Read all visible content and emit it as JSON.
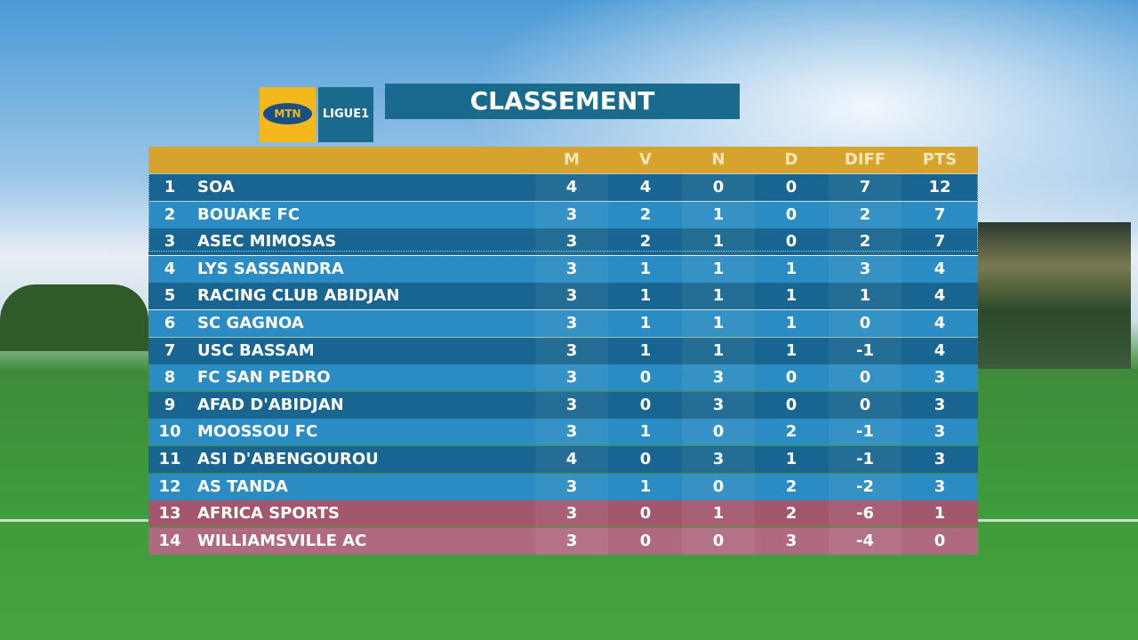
{
  "logo": {
    "brand": "MTN",
    "league": "LIGUE1"
  },
  "title": "CLASSEMENT",
  "table": {
    "columns": [
      "M",
      "V",
      "N",
      "D",
      "DIFF",
      "PTS"
    ],
    "rows": [
      [
        1,
        "SOA",
        4,
        4,
        0,
        0,
        7,
        12
      ],
      [
        2,
        "BOUAKE FC",
        3,
        2,
        1,
        0,
        2,
        7
      ],
      [
        3,
        "ASEC MIMOSAS",
        3,
        2,
        1,
        0,
        2,
        7
      ],
      [
        4,
        "LYS SASSANDRA",
        3,
        1,
        1,
        1,
        3,
        4
      ],
      [
        5,
        "RACING CLUB ABIDJAN",
        3,
        1,
        1,
        1,
        1,
        4
      ],
      [
        6,
        "SC GAGNOA",
        3,
        1,
        1,
        1,
        0,
        4
      ],
      [
        7,
        "USC BASSAM",
        3,
        1,
        1,
        1,
        -1,
        4
      ],
      [
        8,
        "FC SAN PEDRO",
        3,
        0,
        3,
        0,
        0,
        3
      ],
      [
        9,
        "AFAD D'ABIDJAN",
        3,
        0,
        3,
        0,
        0,
        3
      ],
      [
        10,
        "MOOSSOU FC",
        3,
        1,
        0,
        2,
        -1,
        3
      ],
      [
        11,
        "ASI D'ABENGOUROU",
        4,
        0,
        3,
        1,
        -1,
        3
      ],
      [
        12,
        "AS TANDA",
        3,
        1,
        0,
        2,
        -2,
        3
      ],
      [
        13,
        "AFRICA SPORTS",
        3,
        0,
        1,
        2,
        -6,
        1
      ],
      [
        14,
        "WILLIAMSVILLE AC",
        3,
        0,
        0,
        3,
        -4,
        0
      ]
    ]
  }
}
